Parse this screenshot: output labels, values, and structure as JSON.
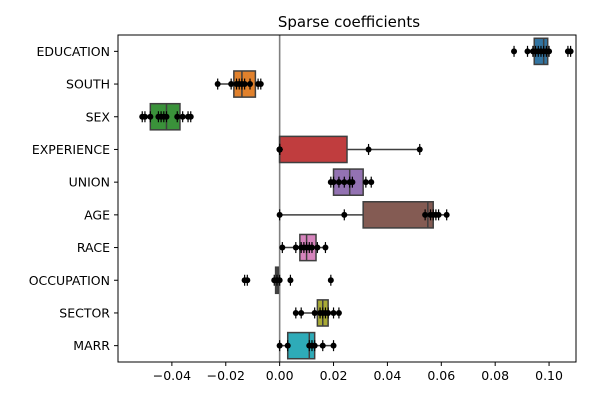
{
  "chart_data": {
    "type": "box",
    "title": "Sparse coefficients",
    "xlabel": "",
    "ylabel": "",
    "orientation": "horizontal",
    "xlim": [
      -0.06,
      0.11
    ],
    "xticks": [
      -0.04,
      -0.02,
      0.0,
      0.02,
      0.04,
      0.06,
      0.08,
      0.1
    ],
    "xtick_labels": [
      "−0.04",
      "−0.02",
      "0.00",
      "0.02",
      "0.04",
      "0.06",
      "0.08",
      "0.10"
    ],
    "zero_line": 0,
    "categories": [
      "EDUCATION",
      "SOUTH",
      "SEX",
      "EXPERIENCE",
      "UNION",
      "AGE",
      "RACE",
      "OCCUPATION",
      "SECTOR",
      "MARR"
    ],
    "boxes": [
      {
        "category": "EDUCATION",
        "color": "#3274a1",
        "whislo": 0.094,
        "q1": 0.0945,
        "med": 0.098,
        "q3": 0.0995,
        "whishi": 0.0995,
        "points": [
          0.087,
          0.092,
          0.094,
          0.095,
          0.096,
          0.097,
          0.098,
          0.099,
          0.1,
          0.107,
          0.108
        ]
      },
      {
        "category": "SOUTH",
        "color": "#e1812c",
        "whislo": -0.023,
        "q1": -0.017,
        "med": -0.014,
        "q3": -0.009,
        "whishi": -0.007,
        "points": [
          -0.023,
          -0.018,
          -0.016,
          -0.015,
          -0.014,
          -0.013,
          -0.011,
          -0.008,
          -0.007
        ]
      },
      {
        "category": "SEX",
        "color": "#3a923a",
        "whislo": -0.051,
        "q1": -0.048,
        "med": -0.042,
        "q3": -0.037,
        "whishi": -0.033,
        "points": [
          -0.051,
          -0.05,
          -0.048,
          -0.045,
          -0.044,
          -0.043,
          -0.042,
          -0.038,
          -0.036,
          -0.034,
          -0.033
        ]
      },
      {
        "category": "EXPERIENCE",
        "color": "#c03d3e",
        "whislo": 0.0,
        "q1": 0.0,
        "med": 0.0,
        "q3": 0.025,
        "whishi": 0.052,
        "points": [
          0.0,
          0.0,
          0.0,
          0.0,
          0.0,
          0.0,
          0.0,
          0.033,
          0.052
        ]
      },
      {
        "category": "UNION",
        "color": "#9372b2",
        "whislo": 0.019,
        "q1": 0.02,
        "med": 0.026,
        "q3": 0.031,
        "whishi": 0.034,
        "points": [
          0.019,
          0.02,
          0.022,
          0.024,
          0.026,
          0.027,
          0.032,
          0.034
        ]
      },
      {
        "category": "AGE",
        "color": "#845b53",
        "whislo": 0.0,
        "q1": 0.031,
        "med": 0.055,
        "q3": 0.057,
        "whishi": 0.062,
        "points": [
          0.0,
          0.024,
          0.054,
          0.056,
          0.057,
          0.058,
          0.059,
          0.062
        ]
      },
      {
        "category": "RACE",
        "color": "#d684bd",
        "whislo": 0.001,
        "q1": 0.0075,
        "med": 0.01,
        "q3": 0.0135,
        "whishi": 0.017,
        "points": [
          0.001,
          0.006,
          0.008,
          0.009,
          0.01,
          0.011,
          0.012,
          0.014,
          0.017
        ]
      },
      {
        "category": "OCCUPATION",
        "color": "#7f7f7f",
        "whislo": -0.002,
        "q1": -0.0015,
        "med": -0.001,
        "q3": -0.0005,
        "whishi": 0.0,
        "points": [
          -0.013,
          -0.012,
          -0.002,
          -0.001,
          0.0,
          0.004,
          0.019
        ]
      },
      {
        "category": "SECTOR",
        "color": "#a9aa35",
        "whislo": 0.006,
        "q1": 0.014,
        "med": 0.016,
        "q3": 0.018,
        "whishi": 0.022,
        "points": [
          0.006,
          0.008,
          0.013,
          0.015,
          0.016,
          0.017,
          0.018,
          0.02,
          0.022
        ]
      },
      {
        "category": "MARR",
        "color": "#2eabb8",
        "whislo": 0.0,
        "q1": 0.003,
        "med": 0.011,
        "q3": 0.013,
        "whishi": 0.02,
        "points": [
          0.0,
          0.003,
          0.011,
          0.012,
          0.013,
          0.016,
          0.02
        ]
      }
    ],
    "grid": false,
    "legend": "none"
  }
}
